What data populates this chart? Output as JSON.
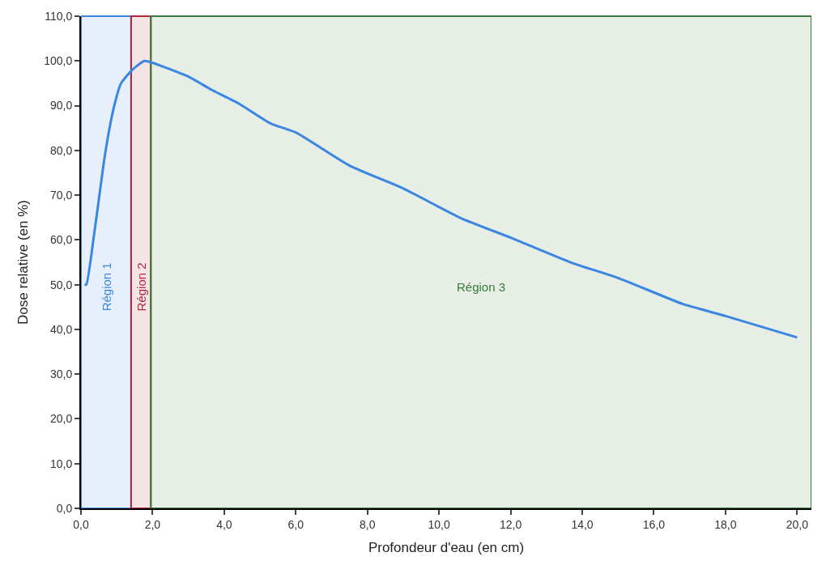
{
  "chart_data": {
    "type": "line",
    "xlabel": "Profondeur d'eau (en cm)",
    "ylabel": "Dose relative (en %)",
    "x": [
      0.1,
      0.15,
      0.38,
      0.67,
      0.9,
      1.12,
      1.43,
      1.77,
      2.0,
      2.3,
      3.0,
      3.66,
      4.4,
      5.3,
      6,
      7.5,
      9,
      10.6,
      12,
      13.7,
      15,
      16.8,
      18,
      20
    ],
    "series": [
      {
        "color": "#3b86e0",
        "values": [
          50,
          50,
          62,
          79,
          89,
          95,
          98,
          100,
          99.6,
          98.7,
          96.5,
          93.5,
          90.5,
          86,
          84,
          76.6,
          71.5,
          64.9,
          60.5,
          54.9,
          51.5,
          45.7,
          43,
          38.2
        ]
      }
    ],
    "xlim": [
      0,
      20.4
    ],
    "ylim": [
      0,
      110
    ],
    "xticks": [
      {
        "value": 0,
        "label": "0,0"
      },
      {
        "value": 2,
        "label": "2,0"
      },
      {
        "value": 4,
        "label": "4,0"
      },
      {
        "value": 6,
        "label": "6,0"
      },
      {
        "value": 8,
        "label": "8,0"
      },
      {
        "value": 10,
        "label": "10,0"
      },
      {
        "value": 12,
        "label": "12,0"
      },
      {
        "value": 14,
        "label": "14,0"
      },
      {
        "value": 16,
        "label": "16,0"
      },
      {
        "value": 18,
        "label": "18,0"
      },
      {
        "value": 20,
        "label": "20,0"
      }
    ],
    "yticks": [
      {
        "value": 0,
        "label": "0,0"
      },
      {
        "value": 10,
        "label": "10,0"
      },
      {
        "value": 20,
        "label": "20,0"
      },
      {
        "value": 30,
        "label": "30,0"
      },
      {
        "value": 40,
        "label": "40,0"
      },
      {
        "value": 50,
        "label": "50,0"
      },
      {
        "value": 60,
        "label": "60,0"
      },
      {
        "value": 70,
        "label": "70,0"
      },
      {
        "value": 80,
        "label": "80,0"
      },
      {
        "value": 90,
        "label": "90,0"
      },
      {
        "value": 100,
        "label": "100,0"
      },
      {
        "value": 110,
        "label": "110,0"
      }
    ],
    "bands": [
      {
        "axis": "x",
        "from": 0,
        "to": 1.4,
        "label": "Région 1",
        "color": "#3a86e0"
      },
      {
        "axis": "x",
        "from": 1.4,
        "to": 1.95,
        "label": "Région 2",
        "color": "#b0283e"
      },
      {
        "axis": "x",
        "from": 1.95,
        "to": 20.4,
        "label": "Région 3",
        "color": "#3a7a3a"
      }
    ],
    "grid": false,
    "marker": "none",
    "line_style": "solid"
  }
}
